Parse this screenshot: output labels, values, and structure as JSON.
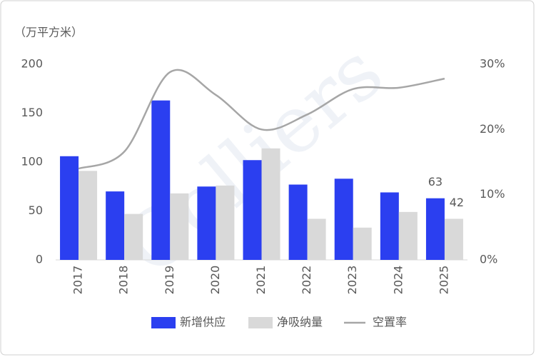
{
  "chart_data": {
    "type": "bar-line",
    "y_axis_label": "（万平方米）",
    "watermark": "Colliers",
    "categories": [
      "2017",
      "2018",
      "2019",
      "2020",
      "2021",
      "2022",
      "2023",
      "2024",
      "2025"
    ],
    "series": [
      {
        "name": "新增供应",
        "color": "#2b3ff0",
        "type": "bar",
        "values": [
          106,
          70,
          163,
          75,
          102,
          77,
          83,
          69,
          63
        ],
        "value_labels": [
          null,
          null,
          null,
          null,
          null,
          null,
          null,
          null,
          "63"
        ]
      },
      {
        "name": "净吸纳量",
        "color": "#d9d9d9",
        "type": "bar",
        "values": [
          91,
          47,
          68,
          76,
          114,
          42,
          33,
          49,
          42
        ],
        "value_labels": [
          null,
          null,
          null,
          null,
          null,
          null,
          null,
          null,
          "42"
        ]
      },
      {
        "name": "空置率",
        "color": "#a6a6a6",
        "type": "line",
        "axis": "y2",
        "values": [
          14.0,
          16.6,
          28.8,
          25.3,
          20.0,
          22.3,
          26.2,
          26.4,
          27.8
        ]
      }
    ],
    "ylim": [
      0,
      200
    ],
    "yticks": [
      0,
      50,
      100,
      150,
      200
    ],
    "y2lim": [
      0,
      30
    ],
    "y2ticks": [
      {
        "value": 0,
        "label": "0%"
      },
      {
        "value": 10,
        "label": "10%"
      },
      {
        "value": 20,
        "label": "20%"
      },
      {
        "value": 30,
        "label": "30%"
      }
    ],
    "grid": false,
    "legend": "bottom"
  }
}
